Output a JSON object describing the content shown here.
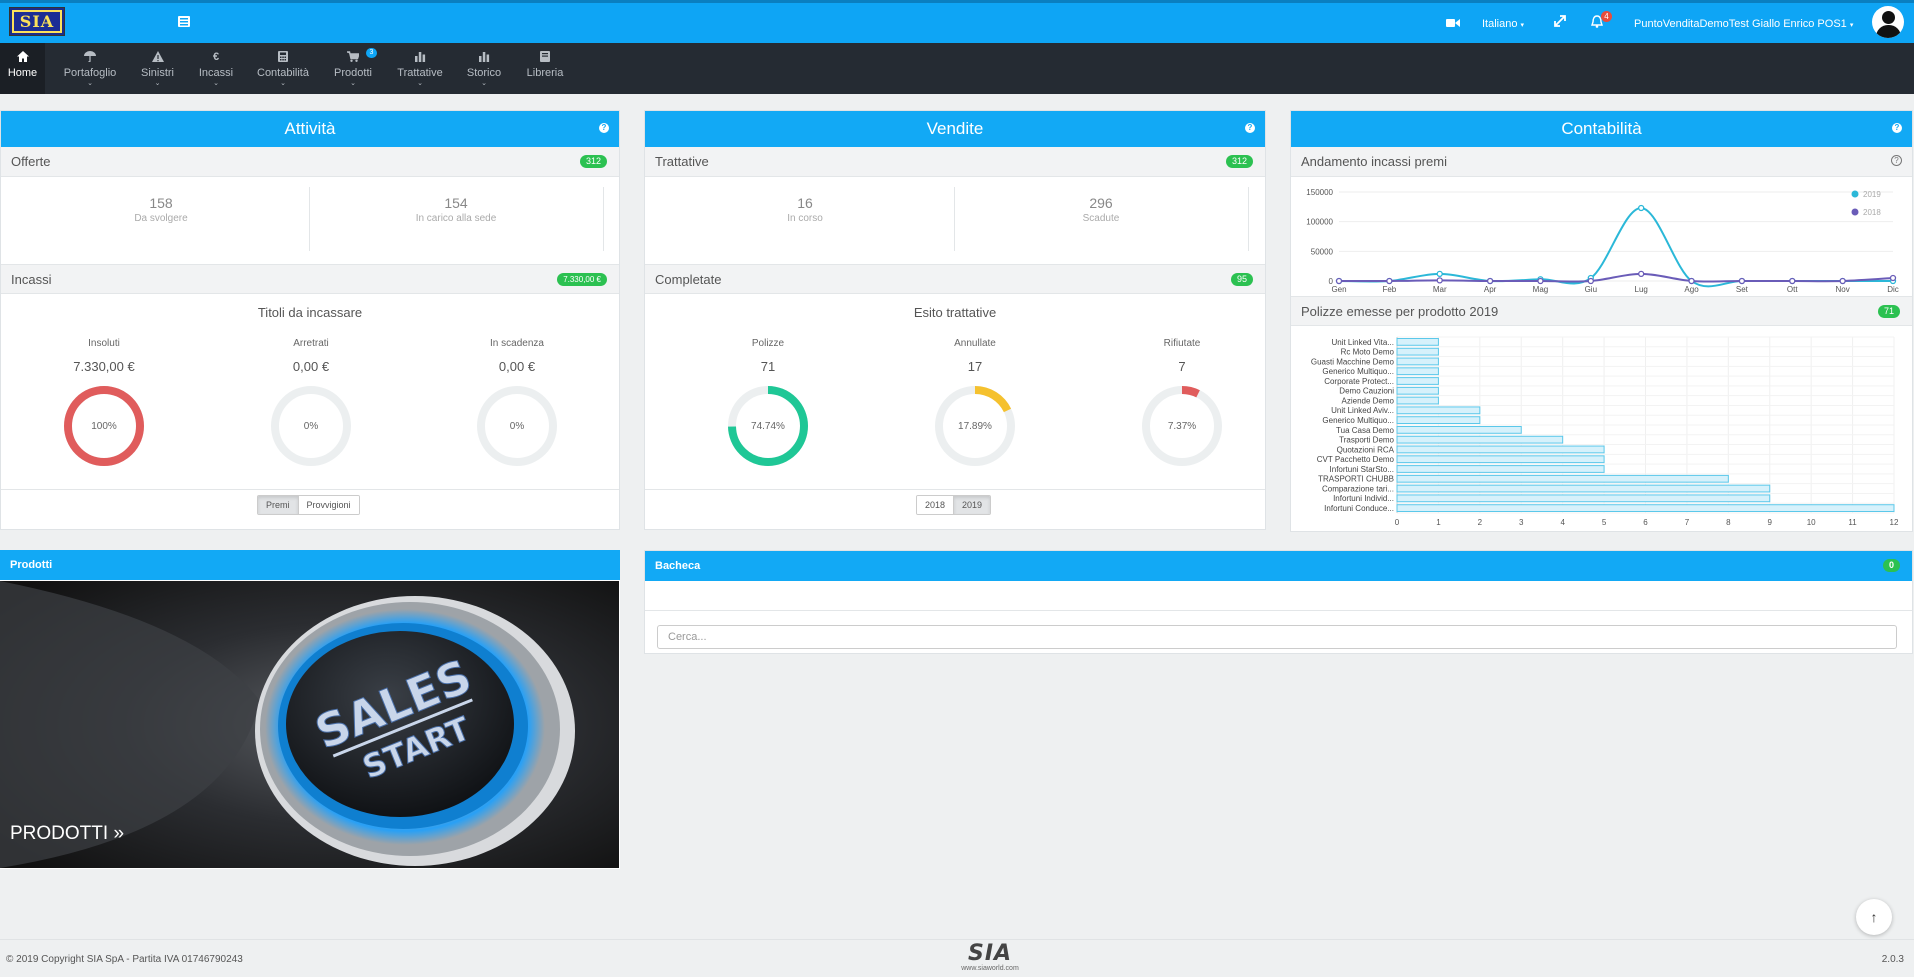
{
  "topbar": {
    "logo": "SIA",
    "language": "Italiano",
    "user": "PuntoVenditaDemoTest Giallo Enrico POS1",
    "notifications": "4",
    "icons": [
      "menu-icon",
      "video-icon",
      "expand-icon",
      "bell-icon"
    ]
  },
  "nav": {
    "items": [
      {
        "label": "Home",
        "icon": "home-icon"
      },
      {
        "label": "Portafoglio",
        "icon": "umbrella-icon"
      },
      {
        "label": "Sinistri",
        "icon": "warning-icon"
      },
      {
        "label": "Incassi",
        "icon": "euro-icon"
      },
      {
        "label": "Contabilità",
        "icon": "calculator-icon"
      },
      {
        "label": "Prodotti",
        "icon": "cart-icon",
        "badge": "3"
      },
      {
        "label": "Trattative",
        "icon": "bar-chart-icon"
      },
      {
        "label": "Storico",
        "icon": "bar-chart-icon"
      },
      {
        "label": "Libreria",
        "icon": "book-icon"
      }
    ]
  },
  "attivita": {
    "title": "Attività",
    "offerte": {
      "label": "Offerte",
      "badge": "312",
      "stats": [
        {
          "value": "158",
          "label": "Da svolgere"
        },
        {
          "value": "154",
          "label": "In carico alla sede"
        }
      ]
    },
    "incassi": {
      "label": "Incassi",
      "badge": "7.330,00 €",
      "section_title": "Titoli da incassare",
      "donuts": [
        {
          "label": "Insoluti",
          "value": "7.330,00 €",
          "pct": "100%",
          "fraction": 1.0,
          "color": "#e05c5c"
        },
        {
          "label": "Arretrati",
          "value": "0,00 €",
          "pct": "0%",
          "fraction": 0,
          "color": "#e05c5c"
        },
        {
          "label": "In scadenza",
          "value": "0,00 €",
          "pct": "0%",
          "fraction": 0,
          "color": "#e05c5c"
        }
      ],
      "toggle": [
        "Premi",
        "Provvigioni"
      ]
    }
  },
  "vendite": {
    "title": "Vendite",
    "trattative": {
      "label": "Trattative",
      "badge": "312",
      "stats": [
        {
          "value": "16",
          "label": "In corso"
        },
        {
          "value": "296",
          "label": "Scadute"
        }
      ]
    },
    "completate": {
      "label": "Completate",
      "badge": "95",
      "section_title": "Esito trattative",
      "donuts": [
        {
          "label": "Polizze",
          "value": "71",
          "pct": "74.74%",
          "fraction": 0.7474,
          "color": "#1fc796"
        },
        {
          "label": "Annullate",
          "value": "17",
          "pct": "17.89%",
          "fraction": 0.1789,
          "color": "#f5c12e"
        },
        {
          "label": "Rifiutate",
          "value": "7",
          "pct": "7.37%",
          "fraction": 0.0737,
          "color": "#e05c5c"
        }
      ],
      "toggle": [
        "2018",
        "2019"
      ]
    }
  },
  "contabilita": {
    "title": "Contabilità",
    "line_title": "Andamento incassi premi",
    "bar_title": "Polizze emesse per prodotto 2019",
    "bar_badge": "71"
  },
  "chart_data": [
    {
      "type": "line",
      "title": "Andamento incassi premi",
      "categories": [
        "Gen",
        "Feb",
        "Mar",
        "Apr",
        "Mag",
        "Giu",
        "Lug",
        "Ago",
        "Set",
        "Ott",
        "Nov",
        "Dic"
      ],
      "ylim": [
        0,
        150000
      ],
      "yticks": [
        "150000",
        "100000",
        "50000",
        "0"
      ],
      "legend_position": "top-right",
      "series": [
        {
          "name": "2019",
          "color": "#2bb8d8",
          "values": [
            0,
            0,
            12000,
            0,
            3000,
            5000,
            123000,
            0,
            0,
            0,
            0,
            0
          ]
        },
        {
          "name": "2018",
          "color": "#6a5cb8",
          "values": [
            0,
            0,
            1000,
            0,
            0,
            0,
            12000,
            0,
            0,
            0,
            0,
            5000
          ]
        }
      ]
    },
    {
      "type": "bar",
      "orientation": "horizontal",
      "title": "Polizze emesse per prodotto 2019",
      "categories": [
        "Unit Linked Vita...",
        "Rc Moto Demo",
        "Guasti Macchine Demo",
        "Generico Multiquo...",
        "Corporate Protect...",
        "Demo Cauzioni",
        "Aziende Demo",
        "Unit Linked Aviv...",
        "Generico Multiquo...",
        "Tua Casa Demo",
        "Trasporti Demo",
        "Quotazioni RCA",
        "CVT Pacchetto Demo",
        "Infortuni StarSto...",
        "TRASPORTI CHUBB",
        "Comparazione tari...",
        "Infortuni Individ...",
        "Infortuni Conduce..."
      ],
      "values": [
        1,
        1,
        1,
        1,
        1,
        1,
        1,
        2,
        2,
        3,
        4,
        5,
        5,
        5,
        8,
        9,
        9,
        12
      ],
      "xticks": [
        "0",
        "1",
        "2",
        "3",
        "4",
        "5",
        "6",
        "7",
        "8",
        "9",
        "10",
        "11",
        "12"
      ],
      "xlim": [
        0,
        12
      ],
      "color": "#5bc8ea"
    }
  ],
  "prodotti": {
    "title": "Prodotti",
    "banner_link": "PRODOTTI »",
    "banner_text_1": "SALES",
    "banner_text_2": "START"
  },
  "bacheca": {
    "title": "Bacheca",
    "badge": "0",
    "search_placeholder": "Cerca..."
  },
  "footer": {
    "copyright": "© 2019 Copyright SIA SpA - Partita IVA 01746790243",
    "logo": "SIA",
    "website": "www.siaworld.com",
    "version": "2.0.3"
  }
}
